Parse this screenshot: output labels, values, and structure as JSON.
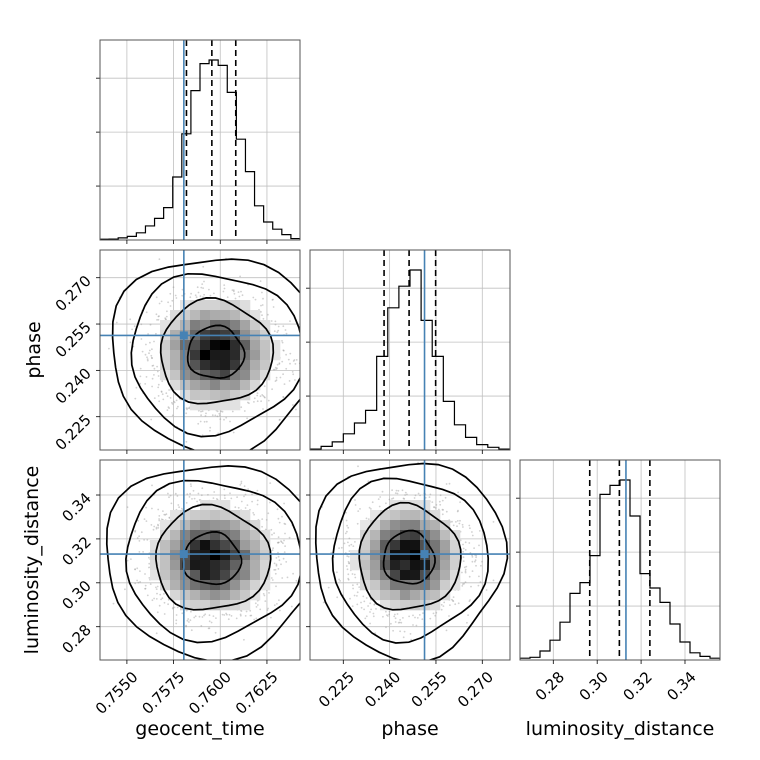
{
  "chart_data": {
    "type": "corner",
    "parameters": [
      "geocent_time",
      "phase",
      "luminosity_distance"
    ],
    "axis_labels": {
      "geocent_time": "geocent_time",
      "phase": "phase",
      "luminosity_distance": "luminosity_distance"
    },
    "ranges": {
      "geocent_time": [
        0.75356,
        0.76427
      ],
      "phase": [
        0.21422,
        0.27897
      ],
      "luminosity_distance": [
        0.26483,
        0.35595
      ]
    },
    "ticks": {
      "geocent_time": {
        "values": [
          0.755,
          0.7575,
          0.76,
          0.7625
        ],
        "labels": [
          "0.7550",
          "0.7575",
          "0.7600",
          "0.7625"
        ]
      },
      "phase": {
        "values": [
          0.225,
          0.24,
          0.255,
          0.27
        ],
        "labels": [
          "0.225",
          "0.240",
          "0.255",
          "0.270"
        ]
      },
      "luminosity_distance": {
        "values": [
          0.28,
          0.3,
          0.32,
          0.34
        ],
        "labels": [
          "0.28",
          "0.30",
          "0.32",
          "0.34"
        ]
      }
    },
    "truths": {
      "geocent_time": 0.75805,
      "phase": 0.2513,
      "luminosity_distance": 0.3131
    },
    "quantiles": {
      "geocent_time": [
        0.75819,
        0.75955,
        0.76083
      ],
      "phase": [
        0.2382,
        0.2463,
        0.2549
      ],
      "luminosity_distance": [
        0.2966,
        0.3101,
        0.324
      ]
    },
    "histograms": {
      "geocent_time": [
        0.004,
        0.005,
        0.012,
        0.02,
        0.04,
        0.078,
        0.12,
        0.18,
        0.35,
        0.59,
        0.83,
        0.98,
        1.0,
        0.97,
        0.82,
        0.56,
        0.38,
        0.19,
        0.1,
        0.06,
        0.03,
        0.008
      ],
      "phase": [
        0.005,
        0.02,
        0.045,
        0.09,
        0.15,
        0.22,
        0.52,
        0.79,
        0.91,
        1.0,
        0.72,
        0.52,
        0.27,
        0.14,
        0.07,
        0.03,
        0.015,
        0.005
      ],
      "luminosity_distance": [
        0.01,
        0.015,
        0.05,
        0.11,
        0.21,
        0.37,
        0.43,
        0.58,
        0.92,
        0.97,
        1.0,
        0.8,
        0.48,
        0.4,
        0.32,
        0.2,
        0.1,
        0.04,
        0.02,
        0.01
      ]
    },
    "pair_stats": [
      {
        "x": "geocent_time",
        "y": "phase",
        "center": [
          0.75975,
          0.2457
        ],
        "sd": [
          0.00152,
          0.0085
        ],
        "rho": 0.0
      },
      {
        "x": "geocent_time",
        "y": "luminosity_distance",
        "center": [
          0.75955,
          0.3108
        ],
        "sd": [
          0.00155,
          0.0119
        ],
        "rho": 0.0
      },
      {
        "x": "phase",
        "y": "luminosity_distance",
        "center": [
          0.2462,
          0.3112
        ],
        "sd": [
          0.0083,
          0.0121
        ],
        "rho": 0.05
      }
    ],
    "contour_levels": [
      0.39,
      0.86,
      0.99,
      0.999
    ],
    "colors": {
      "truth": "#4682b4",
      "hist": "#000000",
      "grid": "#c0c0c0",
      "points": "#9a9a9a"
    },
    "grid": true
  }
}
